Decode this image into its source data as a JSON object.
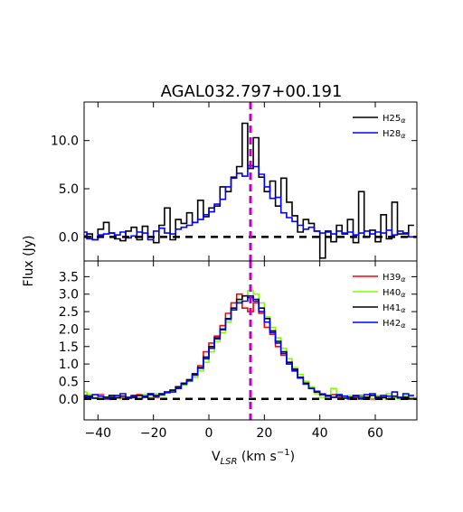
{
  "chart_data": [
    {
      "panel": "top",
      "type": "line",
      "step": true,
      "title": "AGAL032.797+00.191",
      "xlim": [
        -45,
        75
      ],
      "ylim": [
        -2.5,
        14.0
      ],
      "yticks": [
        0.0,
        5.0,
        10.0
      ],
      "ytick_labels": [
        "0.0",
        "5.0",
        "10.0"
      ],
      "reference_lines": {
        "vertical_x": 15,
        "horizontal_y": 0
      },
      "legend_position": "top-right",
      "series": [
        {
          "name": "H25α",
          "label_base": "H25",
          "label_sub": "α",
          "color": "#000000",
          "x": [
            -45,
            -43,
            -41,
            -39,
            -37,
            -35,
            -33,
            -31,
            -29,
            -27,
            -25,
            -23,
            -21,
            -19,
            -17,
            -15,
            -13,
            -11,
            -9,
            -7,
            -5,
            -3,
            -1,
            1,
            3,
            5,
            7,
            9,
            11,
            13,
            15,
            17,
            19,
            21,
            23,
            25,
            27,
            29,
            31,
            33,
            35,
            37,
            39,
            41,
            43,
            45,
            47,
            49,
            51,
            53,
            55,
            57,
            59,
            61,
            63,
            65,
            67,
            69,
            71,
            73
          ],
          "y": [
            0.1,
            0.3,
            -0.3,
            0.8,
            1.5,
            0.4,
            -0.2,
            -0.4,
            0.6,
            1.0,
            -0.3,
            1.1,
            0.0,
            -0.6,
            1.2,
            3.0,
            -0.3,
            1.8,
            1.4,
            2.5,
            1.5,
            3.8,
            2.1,
            3.0,
            3.2,
            5.2,
            4.7,
            6.2,
            7.3,
            11.8,
            7.1,
            10.3,
            6.2,
            4.7,
            5.8,
            3.2,
            6.1,
            3.6,
            2.2,
            0.5,
            1.8,
            1.4,
            0.6,
            -2.2,
            0.6,
            -0.5,
            1.2,
            0.3,
            1.8,
            -0.6,
            4.7,
            0.0,
            0.7,
            -0.5,
            2.3,
            -0.2,
            3.6,
            0.3,
            0.4,
            1.2
          ]
        },
        {
          "name": "H28α",
          "label_base": "H28",
          "label_sub": "α",
          "color": "#0000ff",
          "x": [
            -45,
            -43,
            -41,
            -39,
            -37,
            -35,
            -33,
            -31,
            -29,
            -27,
            -25,
            -23,
            -21,
            -19,
            -17,
            -15,
            -13,
            -11,
            -9,
            -7,
            -5,
            -3,
            -1,
            1,
            3,
            5,
            7,
            9,
            11,
            13,
            15,
            17,
            19,
            21,
            23,
            25,
            27,
            29,
            31,
            33,
            35,
            37,
            39,
            41,
            43,
            45,
            47,
            49,
            51,
            53,
            55,
            57,
            59,
            61,
            63,
            65,
            67,
            69,
            71,
            73
          ],
          "y": [
            0.5,
            -0.2,
            -0.3,
            0.2,
            0.3,
            0.4,
            0.2,
            0.5,
            -0.1,
            0.1,
            0.5,
            0.4,
            -0.3,
            0.6,
            0.9,
            0.4,
            0.3,
            0.8,
            1.0,
            1.2,
            1.5,
            1.8,
            2.3,
            2.6,
            3.4,
            3.9,
            5.2,
            6.1,
            6.6,
            6.3,
            7.4,
            7.3,
            6.5,
            5.2,
            4.0,
            4.1,
            2.5,
            2.0,
            1.6,
            1.2,
            0.8,
            1.0,
            0.6,
            0.4,
            0.5,
            0.3,
            0.6,
            0.4,
            0.5,
            0.2,
            0.4,
            0.6,
            0.3,
            0.5,
            0.4,
            0.7,
            0.2,
            0.6,
            0.3,
            0.0
          ]
        }
      ]
    },
    {
      "panel": "bottom",
      "type": "line",
      "step": true,
      "xlim": [
        -45,
        75
      ],
      "ylim": [
        -0.6,
        3.95
      ],
      "yticks": [
        0.0,
        0.5,
        1.0,
        1.5,
        2.0,
        2.5,
        3.0,
        3.5
      ],
      "ytick_labels": [
        "0.0",
        "0.5",
        "1.0",
        "1.5",
        "2.0",
        "2.5",
        "3.0",
        "3.5"
      ],
      "xticks": [
        -40,
        -20,
        0,
        20,
        40,
        60
      ],
      "xtick_labels": [
        "−40",
        "−20",
        "0",
        "20",
        "40",
        "60"
      ],
      "xlabel": "V_LSR (km s^-1)",
      "xlabel_parts": {
        "v": "V",
        "sub": "LSR",
        "open": " (km s",
        "sup": "−1",
        "close": ")"
      },
      "ylabel": "Flux (Jy)",
      "reference_lines": {
        "vertical_x": 15,
        "horizontal_y": 0
      },
      "legend_position": "top-right",
      "series": [
        {
          "name": "H39α",
          "label_base": "H39",
          "label_sub": "α",
          "color": "#ff0000",
          "x": [
            -45,
            -43,
            -41,
            -39,
            -37,
            -35,
            -33,
            -31,
            -29,
            -27,
            -25,
            -23,
            -21,
            -19,
            -17,
            -15,
            -13,
            -11,
            -9,
            -7,
            -5,
            -3,
            -1,
            1,
            3,
            5,
            7,
            9,
            11,
            13,
            15,
            17,
            19,
            21,
            23,
            25,
            27,
            29,
            31,
            33,
            35,
            37,
            39,
            41,
            43,
            45,
            47,
            49,
            51,
            53,
            55,
            57,
            59,
            61,
            63,
            65,
            67,
            69,
            71,
            73
          ],
          "y": [
            0.08,
            0.05,
            0.02,
            0.12,
            0.05,
            0.0,
            0.04,
            0.02,
            0.03,
            0.08,
            0.12,
            0.07,
            0.15,
            0.05,
            0.12,
            0.18,
            0.25,
            0.32,
            0.45,
            0.55,
            0.7,
            0.95,
            1.35,
            1.6,
            1.8,
            2.1,
            2.45,
            2.75,
            3.0,
            2.6,
            2.5,
            2.75,
            2.45,
            2.05,
            1.85,
            1.5,
            1.25,
            1.0,
            0.85,
            0.6,
            0.5,
            0.3,
            0.2,
            0.15,
            0.1,
            0.12,
            0.05,
            0.08,
            0.0,
            0.03,
            0.1,
            0.05,
            0.0,
            0.08,
            0.03,
            0.0,
            0.05,
            0.02,
            0.0,
            0.03
          ]
        },
        {
          "name": "H40α",
          "label_base": "H40",
          "label_sub": "α",
          "color": "#7fff00",
          "x": [
            -45,
            -43,
            -41,
            -39,
            -37,
            -35,
            -33,
            -31,
            -29,
            -27,
            -25,
            -23,
            -21,
            -19,
            -17,
            -15,
            -13,
            -11,
            -9,
            -7,
            -5,
            -3,
            -1,
            1,
            3,
            5,
            7,
            9,
            11,
            13,
            15,
            17,
            19,
            21,
            23,
            25,
            27,
            29,
            31,
            33,
            35,
            37,
            39,
            41,
            43,
            45,
            47,
            49,
            51,
            53,
            55,
            57,
            59,
            61,
            63,
            65,
            67,
            69,
            71,
            73
          ],
          "y": [
            0.2,
            0.12,
            0.05,
            0.1,
            0.0,
            0.05,
            0.08,
            0.0,
            0.05,
            0.02,
            0.1,
            0.12,
            0.05,
            0.15,
            0.1,
            0.2,
            0.22,
            0.3,
            0.4,
            0.5,
            0.62,
            0.8,
            1.05,
            1.35,
            1.65,
            1.9,
            2.2,
            2.55,
            2.8,
            2.95,
            3.1,
            3.0,
            2.75,
            2.35,
            2.05,
            1.75,
            1.45,
            1.15,
            0.9,
            0.7,
            0.5,
            0.35,
            0.15,
            0.05,
            0.1,
            0.3,
            0.12,
            0.05,
            0.1,
            0.0,
            0.08,
            0.05,
            0.02,
            0.1,
            0.0,
            0.15,
            0.05,
            0.0,
            0.1,
            0.05
          ]
        },
        {
          "name": "H41α",
          "label_base": "H41",
          "label_sub": "α",
          "color": "#000000",
          "x": [
            -45,
            -43,
            -41,
            -39,
            -37,
            -35,
            -33,
            -31,
            -29,
            -27,
            -25,
            -23,
            -21,
            -19,
            -17,
            -15,
            -13,
            -11,
            -9,
            -7,
            -5,
            -3,
            -1,
            1,
            3,
            5,
            7,
            9,
            11,
            13,
            15,
            17,
            19,
            21,
            23,
            25,
            27,
            29,
            31,
            33,
            35,
            37,
            39,
            41,
            43,
            45,
            47,
            49,
            51,
            53,
            55,
            57,
            59,
            61,
            63,
            65,
            67,
            69,
            71,
            73
          ],
          "y": [
            0.05,
            0.08,
            0.02,
            0.0,
            0.05,
            0.1,
            0.03,
            0.08,
            0.02,
            0.05,
            0.1,
            0.05,
            0.12,
            0.08,
            0.15,
            0.2,
            0.25,
            0.35,
            0.45,
            0.55,
            0.72,
            0.9,
            1.2,
            1.5,
            1.75,
            2.0,
            2.3,
            2.6,
            2.85,
            2.95,
            2.9,
            2.85,
            2.6,
            2.3,
            1.95,
            1.65,
            1.35,
            1.05,
            0.85,
            0.62,
            0.45,
            0.3,
            0.2,
            0.12,
            0.08,
            0.05,
            0.1,
            0.02,
            0.05,
            0.08,
            0.0,
            0.05,
            0.1,
            0.02,
            0.05,
            0.0,
            0.08,
            0.03,
            0.05,
            0.0
          ]
        },
        {
          "name": "H42α",
          "label_base": "H42",
          "label_sub": "α",
          "color": "#0000ff",
          "x": [
            -45,
            -43,
            -41,
            -39,
            -37,
            -35,
            -33,
            -31,
            -29,
            -27,
            -25,
            -23,
            -21,
            -19,
            -17,
            -15,
            -13,
            -11,
            -9,
            -7,
            -5,
            -3,
            -1,
            1,
            3,
            5,
            7,
            9,
            11,
            13,
            15,
            17,
            19,
            21,
            23,
            25,
            27,
            29,
            31,
            33,
            35,
            37,
            39,
            41,
            43,
            45,
            47,
            49,
            51,
            53,
            55,
            57,
            59,
            61,
            63,
            65,
            67,
            69,
            71,
            73
          ],
          "y": [
            0.1,
            0.05,
            0.12,
            0.08,
            0.0,
            0.05,
            0.1,
            0.15,
            0.05,
            0.1,
            0.0,
            0.08,
            0.15,
            0.1,
            0.12,
            0.18,
            0.2,
            0.3,
            0.42,
            0.52,
            0.68,
            0.88,
            1.15,
            1.45,
            1.72,
            1.98,
            2.28,
            2.55,
            2.75,
            2.8,
            2.95,
            2.8,
            2.5,
            2.2,
            1.9,
            1.6,
            1.3,
            1.0,
            0.8,
            0.6,
            0.42,
            0.3,
            0.22,
            0.12,
            0.1,
            0.05,
            0.12,
            0.08,
            0.0,
            0.1,
            0.05,
            0.12,
            0.15,
            0.05,
            0.1,
            0.08,
            0.2,
            0.05,
            0.15,
            0.1
          ]
        }
      ]
    }
  ]
}
